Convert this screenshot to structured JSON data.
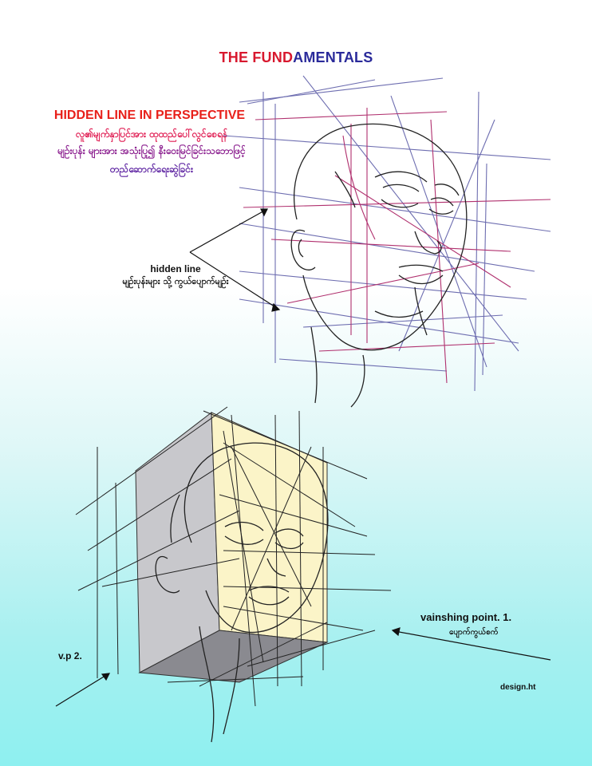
{
  "title_part1": "THE FUND",
  "title_part2": "AMENTALS",
  "subtitle": "HIDDEN LINE IN PERSPECTIVE",
  "myanmar_lines": [
    "လူ၏မျက်နှာပြင်အား ထုထည်ပေါ်လွင်စေရန်",
    "မျဉ်းပုန်း များအား အသုံးပြု၍ နီးဝေးမြင်ခြင်းသဘောဖြင့်",
    "တည်ဆောက်ရေးဆွဲခြင်း"
  ],
  "hidden_line_label": "hidden line",
  "hidden_line_myanmar": "မျဉ်းပုန်းများ သို့ ကွယ်ပျောက်မျဉ်း",
  "vp1_label": "vainshing point. 1.",
  "vp1_myanmar": "ပျောက်ကွယ်စက်",
  "vp2_label": "v.p 2.",
  "signature": "design.ht",
  "colors": {
    "title_red": "#d8182e",
    "title_blue": "#2a2a9a",
    "guide_blue": "#6d6db0",
    "guide_magenta": "#b0306e",
    "box_left_face": "#c8c8cc",
    "box_right_face": "#fbf4c8",
    "box_bottom_face": "#8a8a90"
  }
}
